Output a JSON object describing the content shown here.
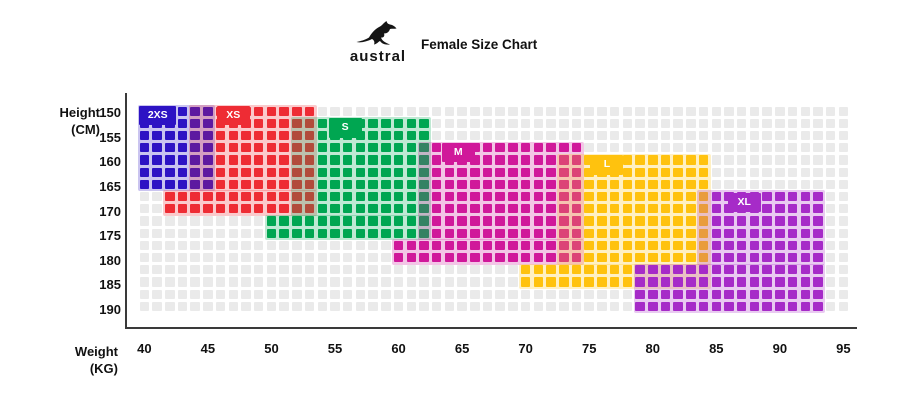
{
  "header": {
    "brand": "austral",
    "title": "Female Size Chart"
  },
  "axes": {
    "y_title": [
      "Height",
      "(CM)"
    ],
    "x_title": [
      "Weight",
      "(KG)"
    ],
    "y_ticks": [
      150,
      155,
      160,
      165,
      170,
      175,
      180,
      185,
      190
    ],
    "x_ticks": [
      40,
      45,
      50,
      55,
      60,
      65,
      70,
      75,
      80,
      85,
      90,
      95
    ]
  },
  "chart_data": {
    "type": "heatmap",
    "title": "Female Size Chart",
    "xlabel": "Weight (KG)",
    "ylabel": "Height (CM)",
    "x_range_kg": [
      40,
      95
    ],
    "y_range_cm": [
      147.5,
      190
    ],
    "grid": {
      "cols": 56,
      "rows": 17,
      "first_col_kg": 40,
      "col_unit_kg": 1,
      "first_row_cm": 147.5,
      "row_unit_cm": 2.5,
      "empty_cell_color": "#EAEAEA"
    },
    "legend_position": "labels-inside-regions",
    "sizes": [
      {
        "label": "2XS",
        "color": "#2D13C4",
        "weight_kg": [
          40,
          45
        ],
        "height_cm": [
          147.5,
          165
        ],
        "label_box": {
          "col": 40.1,
          "row": 0.05
        },
        "bg_rects": [
          [
            40,
            0,
            45,
            6
          ]
        ],
        "square_rects": [
          [
            40,
            0,
            45,
            6
          ]
        ]
      },
      {
        "label": "XS",
        "color": "#EE2C34",
        "weight_kg": [
          42,
          53
        ],
        "height_cm": [
          147.5,
          170
        ],
        "label_box": {
          "col": 46.2,
          "row": 0.05
        },
        "bg_rects": [
          [
            44,
            0,
            53,
            6
          ],
          [
            42,
            7,
            53,
            8
          ]
        ],
        "square_rects": [
          [
            46,
            0,
            53,
            6
          ],
          [
            42,
            7,
            53,
            8
          ]
        ]
      },
      {
        "label": "S",
        "color": "#00A651",
        "weight_kg": [
          50,
          62
        ],
        "height_cm": [
          150,
          172.5
        ],
        "label_box": {
          "col": 55.0,
          "row": 1.1
        },
        "bg_rects": [
          [
            52,
            1,
            62,
            8
          ],
          [
            50,
            9,
            62,
            10
          ]
        ],
        "square_rects": [
          [
            54,
            1,
            62,
            8
          ],
          [
            50,
            9,
            62,
            10
          ]
        ]
      },
      {
        "label": "M",
        "color": "#D0189A",
        "weight_kg": [
          60,
          74
        ],
        "height_cm": [
          155,
          180
        ],
        "label_box": {
          "col": 63.9,
          "row": 3.1
        },
        "bg_rects": [
          [
            62,
            3,
            74,
            10
          ],
          [
            60,
            11,
            74,
            12
          ]
        ],
        "square_rects": [
          [
            63,
            3,
            74,
            10
          ],
          [
            60,
            11,
            74,
            12
          ]
        ]
      },
      {
        "label": "L",
        "color": "#FFC20E",
        "weight_kg": [
          70,
          84
        ],
        "height_cm": [
          157.5,
          185
        ],
        "label_box": {
          "col": 75.6,
          "row": 4.1
        },
        "bg_rects": [
          [
            73,
            4,
            84,
            12
          ],
          [
            70,
            13,
            84,
            14
          ]
        ],
        "square_rects": [
          [
            75,
            4,
            84,
            12
          ],
          [
            70,
            13,
            78,
            14
          ]
        ]
      },
      {
        "label": "XL",
        "color": "#A62BC8",
        "weight_kg": [
          79,
          93
        ],
        "height_cm": [
          165,
          190
        ],
        "label_box": {
          "col": 86.4,
          "row": 7.2
        },
        "bg_rects": [
          [
            84,
            7,
            93,
            12
          ],
          [
            79,
            13,
            93,
            16
          ]
        ],
        "square_rects": [
          [
            85,
            7,
            93,
            12
          ],
          [
            79,
            13,
            93,
            16
          ]
        ]
      }
    ]
  }
}
